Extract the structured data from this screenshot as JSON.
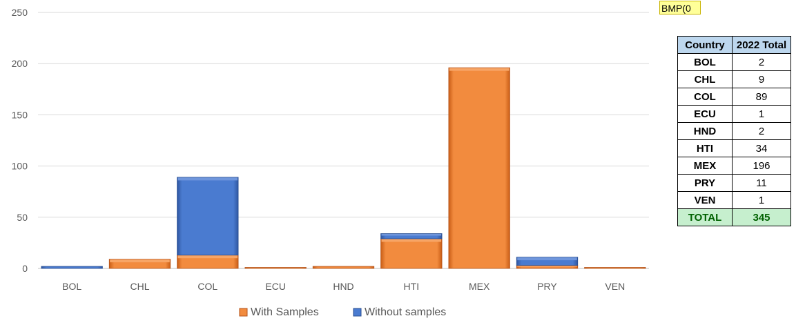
{
  "chart_data": {
    "type": "bar",
    "stacked": true,
    "categories": [
      "BOL",
      "CHL",
      "COL",
      "ECU",
      "HND",
      "HTI",
      "MEX",
      "PRY",
      "VEN"
    ],
    "series": [
      {
        "name": "With Samples",
        "color": "#ed7d31",
        "values": [
          0,
          9,
          13,
          1,
          2,
          29,
          196,
          3,
          1
        ]
      },
      {
        "name": "Without samples",
        "color": "#4472c4",
        "values": [
          2,
          0,
          76,
          0,
          0,
          5,
          0,
          8,
          0
        ]
      }
    ],
    "yticks": [
      0,
      50,
      100,
      150,
      200,
      250
    ],
    "ylim": [
      0,
      250
    ],
    "grid": true,
    "legend": "bottom"
  },
  "tag": "BMP(0",
  "table": {
    "headers": {
      "country": "Country",
      "total": "2022 Total"
    },
    "rows": [
      {
        "country": "BOL",
        "total": "2"
      },
      {
        "country": "CHL",
        "total": "9"
      },
      {
        "country": "COL",
        "total": "89"
      },
      {
        "country": "ECU",
        "total": "1"
      },
      {
        "country": "HND",
        "total": "2"
      },
      {
        "country": "HTI",
        "total": "34"
      },
      {
        "country": "MEX",
        "total": "196"
      },
      {
        "country": "PRY",
        "total": "11"
      },
      {
        "country": "VEN",
        "total": "1"
      }
    ],
    "total_row": {
      "country": "TOTAL",
      "total": "345"
    }
  }
}
